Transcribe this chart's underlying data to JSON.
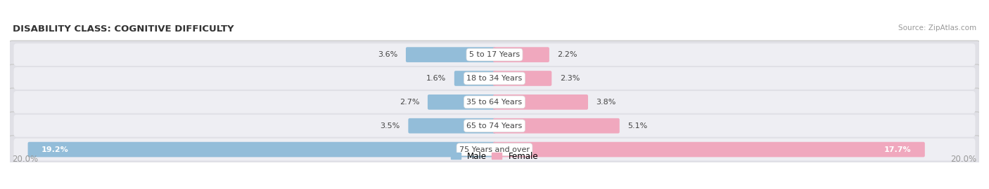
{
  "title": "DISABILITY CLASS: COGNITIVE DIFFICULTY",
  "source": "Source: ZipAtlas.com",
  "categories": [
    "5 to 17 Years",
    "18 to 34 Years",
    "35 to 64 Years",
    "65 to 74 Years",
    "75 Years and over"
  ],
  "male_values": [
    3.6,
    1.6,
    2.7,
    3.5,
    19.2
  ],
  "female_values": [
    2.2,
    2.3,
    3.8,
    5.1,
    17.7
  ],
  "max_val": 20.0,
  "male_color": "#93bdd9",
  "female_color": "#f0a8be",
  "bg_row_color": "#e0e0e6",
  "bg_row_inner": "#eeeef3",
  "label_color": "#444444",
  "title_color": "#333333",
  "axis_label_color": "#999999",
  "legend_male_color": "#93bdd9",
  "legend_female_color": "#f0a8be"
}
